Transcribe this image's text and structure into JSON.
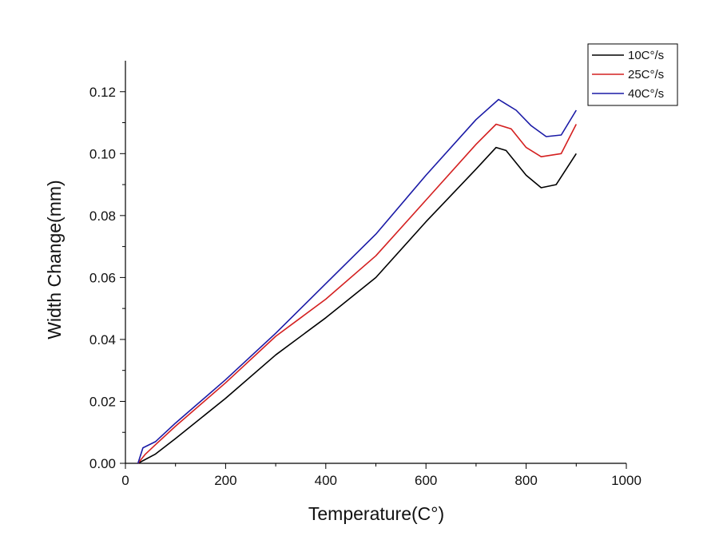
{
  "chart_data": {
    "type": "line",
    "title": "",
    "xlabel": "Temperature(C°)",
    "ylabel": "Width Change(mm)",
    "xlim": [
      0,
      1000
    ],
    "ylim": [
      0,
      0.13
    ],
    "x_ticks": [
      0,
      200,
      400,
      600,
      800,
      1000
    ],
    "x_tick_labels": [
      "0",
      "200",
      "400",
      "600",
      "800",
      "1000"
    ],
    "y_ticks": [
      0,
      0.02,
      0.04,
      0.06,
      0.08,
      0.1,
      0.12
    ],
    "y_tick_labels": [
      "0.00",
      "0.02",
      "0.04",
      "0.06",
      "0.08",
      "0.10",
      "0.12"
    ],
    "grid": false,
    "legend_position": "top-right",
    "series": [
      {
        "name": "10C°/s",
        "color": "#000000",
        "points": [
          [
            25,
            0.0
          ],
          [
            60,
            0.003
          ],
          [
            100,
            0.008
          ],
          [
            200,
            0.021
          ],
          [
            300,
            0.035
          ],
          [
            400,
            0.047
          ],
          [
            500,
            0.06
          ],
          [
            600,
            0.078
          ],
          [
            700,
            0.095
          ],
          [
            740,
            0.102
          ],
          [
            760,
            0.101
          ],
          [
            800,
            0.093
          ],
          [
            830,
            0.089
          ],
          [
            860,
            0.09
          ],
          [
            900,
            0.1
          ]
        ]
      },
      {
        "name": "25C°/s",
        "color": "#d42020",
        "points": [
          [
            25,
            0.0
          ],
          [
            40,
            0.003
          ],
          [
            60,
            0.006
          ],
          [
            100,
            0.012
          ],
          [
            200,
            0.026
          ],
          [
            300,
            0.041
          ],
          [
            350,
            0.047
          ],
          [
            400,
            0.053
          ],
          [
            500,
            0.067
          ],
          [
            600,
            0.085
          ],
          [
            700,
            0.103
          ],
          [
            740,
            0.1095
          ],
          [
            770,
            0.108
          ],
          [
            800,
            0.102
          ],
          [
            830,
            0.099
          ],
          [
            870,
            0.1
          ],
          [
            900,
            0.1095
          ]
        ]
      },
      {
        "name": "40C°/s",
        "color": "#1a1aa6",
        "points": [
          [
            25,
            0.0
          ],
          [
            35,
            0.005
          ],
          [
            60,
            0.007
          ],
          [
            100,
            0.013
          ],
          [
            200,
            0.027
          ],
          [
            300,
            0.042
          ],
          [
            400,
            0.058
          ],
          [
            500,
            0.074
          ],
          [
            600,
            0.093
          ],
          [
            700,
            0.111
          ],
          [
            745,
            0.1175
          ],
          [
            780,
            0.114
          ],
          [
            810,
            0.109
          ],
          [
            840,
            0.1055
          ],
          [
            870,
            0.106
          ],
          [
            900,
            0.114
          ]
        ]
      }
    ]
  }
}
